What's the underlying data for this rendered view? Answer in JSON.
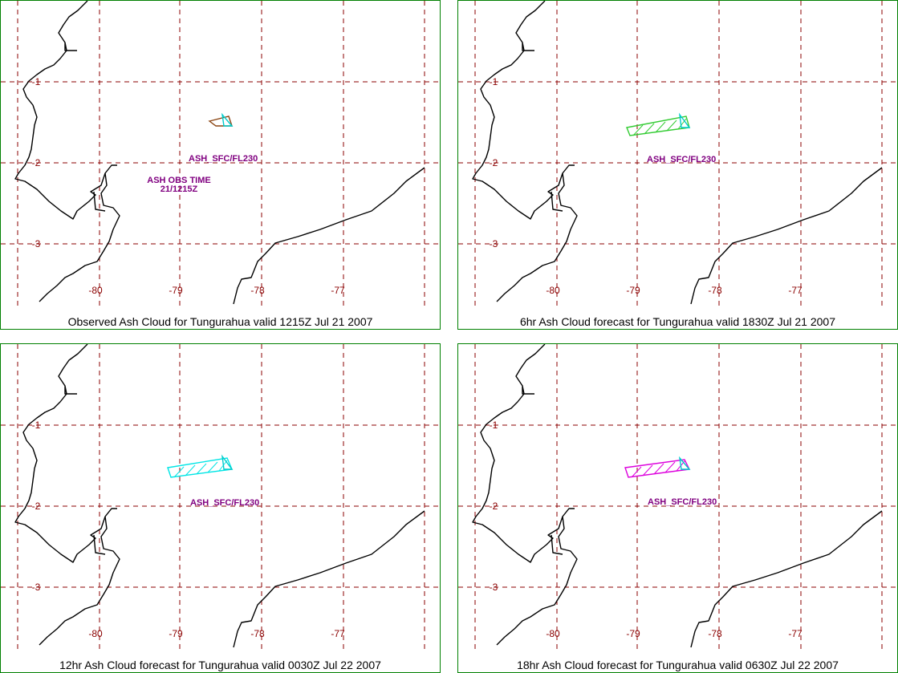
{
  "colors": {
    "grid": "#8b0000",
    "border": "#008000",
    "label": "#800080",
    "coast": "#000000"
  },
  "axes": {
    "lon_ticks": [
      "-80",
      "-79",
      "-78",
      "-77"
    ],
    "lat_ticks": [
      "-1",
      "-2",
      "-3"
    ]
  },
  "panels": [
    {
      "title": "Observed Ash Cloud for Tungurahua valid 1215Z Jul 21 2007",
      "cloud_color": "#8b4513",
      "cloud_label": "ASH_SFC/FL230",
      "obs_label_line1": "ASH OBS TIME",
      "obs_label_line2": "21/1215Z"
    },
    {
      "title": "6hr Ash Cloud forecast for Tungurahua valid 1830Z Jul 21 2007",
      "cloud_color": "#33cc33",
      "cloud_label": "ASH_SFC/FL230"
    },
    {
      "title": "12hr Ash Cloud forecast for Tungurahua valid 0030Z Jul 22 2007",
      "cloud_color": "#00e5e5",
      "cloud_label": "ASH_SFC/FL230"
    },
    {
      "title": "18hr Ash Cloud forecast for Tungurahua valid 0630Z Jul 22 2007",
      "cloud_color": "#dd00dd",
      "cloud_label": "ASH_SFC/FL230"
    }
  ]
}
